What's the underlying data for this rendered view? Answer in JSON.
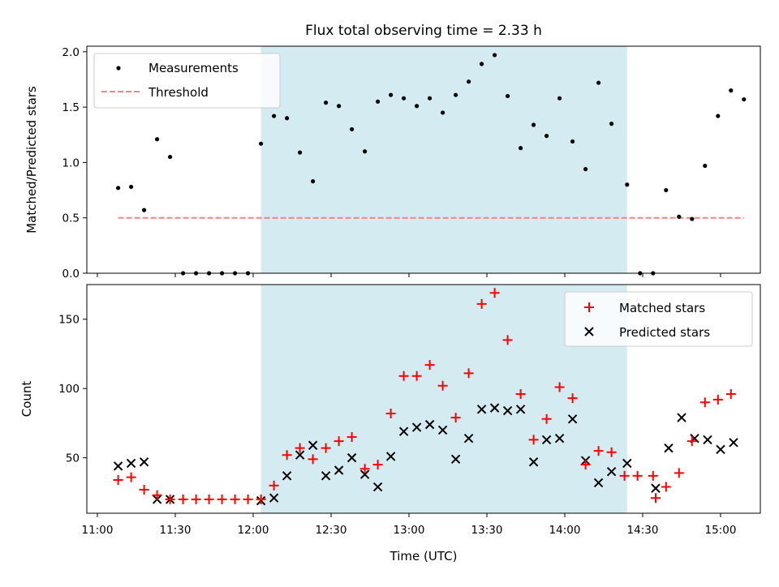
{
  "chart_data": [
    {
      "type": "scatter",
      "title": "Flux total observing time = 2.33 h",
      "xlabel": "",
      "ylabel": "Matched/Predicted stars",
      "ylim": [
        0,
        2.05
      ],
      "y_ticks": [
        "0.0",
        "0.5",
        "1.0",
        "1.5",
        "2.0"
      ],
      "shaded_region": {
        "x_start": "12:03",
        "x_end": "14:24",
        "color": "#add8e6"
      },
      "legend": {
        "position": "top-left",
        "entries": [
          "Measurements",
          "Threshold"
        ]
      },
      "threshold": {
        "name": "Threshold",
        "value": 0.5,
        "x_start": "11:08",
        "x_end": "15:09",
        "color": "#ff8080",
        "style": "dashed"
      },
      "series": [
        {
          "name": "Measurements",
          "color": "#000000",
          "x": [
            "11:08",
            "11:13",
            "11:18",
            "11:23",
            "11:28",
            "11:33",
            "11:38",
            "11:43",
            "11:48",
            "11:53",
            "11:58",
            "12:03",
            "12:08",
            "12:13",
            "12:18",
            "12:23",
            "12:28",
            "12:33",
            "12:38",
            "12:43",
            "12:48",
            "12:53",
            "12:58",
            "13:03",
            "13:08",
            "13:13",
            "13:18",
            "13:23",
            "13:28",
            "13:33",
            "13:38",
            "13:43",
            "13:48",
            "13:53",
            "13:58",
            "14:03",
            "14:08",
            "14:13",
            "14:18",
            "14:24",
            "14:29",
            "14:34",
            "14:39",
            "14:44",
            "14:49",
            "14:54",
            "14:59",
            "15:04",
            "15:09"
          ],
          "y": [
            0.77,
            0.78,
            0.57,
            1.21,
            1.05,
            0.0,
            0.0,
            0.0,
            0.0,
            0.0,
            0.0,
            1.17,
            1.42,
            1.4,
            1.09,
            0.83,
            1.54,
            1.51,
            1.3,
            1.1,
            1.55,
            1.61,
            1.58,
            1.51,
            1.58,
            1.45,
            1.61,
            1.73,
            1.89,
            1.97,
            1.6,
            1.13,
            1.34,
            1.24,
            1.58,
            1.19,
            0.94,
            1.72,
            1.35,
            0.8,
            0.0,
            0.0,
            0.75,
            0.51,
            0.49,
            0.97,
            1.42,
            1.65,
            1.57
          ]
        }
      ]
    },
    {
      "type": "scatter",
      "title": "",
      "xlabel": "Time (UTC)",
      "ylabel": "Count",
      "ylim": [
        10,
        175
      ],
      "y_ticks": [
        "50",
        "100",
        "150"
      ],
      "x_ticks": [
        "11:00",
        "11:30",
        "12:00",
        "12:30",
        "13:00",
        "13:30",
        "14:00",
        "14:30",
        "15:00"
      ],
      "shaded_region": {
        "x_start": "12:03",
        "x_end": "14:24",
        "color": "#add8e6"
      },
      "legend": {
        "position": "top-right",
        "entries": [
          "Matched stars",
          "Predicted stars"
        ]
      },
      "series": [
        {
          "name": "Matched stars",
          "color": "#ff0000",
          "marker": "+",
          "points": [
            [
              "11:08",
              34
            ],
            [
              "11:13",
              36
            ],
            [
              "11:18",
              27
            ],
            [
              "11:23",
              23
            ],
            [
              "11:28",
              20
            ],
            [
              "11:33",
              20
            ],
            [
              "11:38",
              20
            ],
            [
              "11:43",
              20
            ],
            [
              "11:48",
              20
            ],
            [
              "11:53",
              20
            ],
            [
              "11:58",
              20
            ],
            [
              "12:03",
              20
            ],
            [
              "12:08",
              30
            ],
            [
              "12:13",
              52
            ],
            [
              "12:18",
              57
            ],
            [
              "12:23",
              49
            ],
            [
              "12:28",
              57
            ],
            [
              "12:33",
              62
            ],
            [
              "12:38",
              65
            ],
            [
              "12:43",
              42
            ],
            [
              "12:48",
              45
            ],
            [
              "12:53",
              82
            ],
            [
              "12:58",
              109
            ],
            [
              "13:03",
              109
            ],
            [
              "13:08",
              117
            ],
            [
              "13:13",
              102
            ],
            [
              "13:18",
              79
            ],
            [
              "13:23",
              111
            ],
            [
              "13:28",
              161
            ],
            [
              "13:33",
              169
            ],
            [
              "13:38",
              135
            ],
            [
              "13:43",
              96
            ],
            [
              "13:48",
              63
            ],
            [
              "13:53",
              78
            ],
            [
              "13:58",
              101
            ],
            [
              "14:03",
              93
            ],
            [
              "14:08",
              45
            ],
            [
              "14:13",
              55
            ],
            [
              "14:18",
              54
            ],
            [
              "14:23",
              37
            ],
            [
              "14:28",
              37
            ],
            [
              "14:34",
              37
            ],
            [
              "14:35",
              21
            ],
            [
              "14:39",
              29
            ],
            [
              "14:44",
              39
            ],
            [
              "14:49",
              62
            ],
            [
              "14:54",
              90
            ],
            [
              "14:59",
              92
            ],
            [
              "15:04",
              96
            ]
          ]
        },
        {
          "name": "Predicted stars",
          "color": "#000000",
          "marker": "x",
          "points": [
            [
              "11:08",
              44
            ],
            [
              "11:13",
              46
            ],
            [
              "11:18",
              47
            ],
            [
              "11:23",
              20
            ],
            [
              "11:28",
              20
            ],
            [
              "12:03",
              19
            ],
            [
              "12:08",
              21
            ],
            [
              "12:13",
              37
            ],
            [
              "12:18",
              52
            ],
            [
              "12:23",
              59
            ],
            [
              "12:28",
              37
            ],
            [
              "12:33",
              41
            ],
            [
              "12:38",
              50
            ],
            [
              "12:43",
              38
            ],
            [
              "12:48",
              29
            ],
            [
              "12:53",
              51
            ],
            [
              "12:58",
              69
            ],
            [
              "13:03",
              72
            ],
            [
              "13:08",
              74
            ],
            [
              "13:13",
              70
            ],
            [
              "13:18",
              49
            ],
            [
              "13:23",
              64
            ],
            [
              "13:28",
              85
            ],
            [
              "13:33",
              86
            ],
            [
              "13:38",
              84
            ],
            [
              "13:43",
              85
            ],
            [
              "13:48",
              47
            ],
            [
              "13:53",
              63
            ],
            [
              "13:58",
              64
            ],
            [
              "14:03",
              78
            ],
            [
              "14:08",
              48
            ],
            [
              "14:13",
              32
            ],
            [
              "14:18",
              40
            ],
            [
              "14:24",
              46
            ],
            [
              "14:35",
              28
            ],
            [
              "14:40",
              57
            ],
            [
              "14:45",
              79
            ],
            [
              "14:50",
              64
            ],
            [
              "14:55",
              63
            ],
            [
              "15:00",
              56
            ],
            [
              "15:05",
              61
            ]
          ]
        }
      ]
    }
  ]
}
